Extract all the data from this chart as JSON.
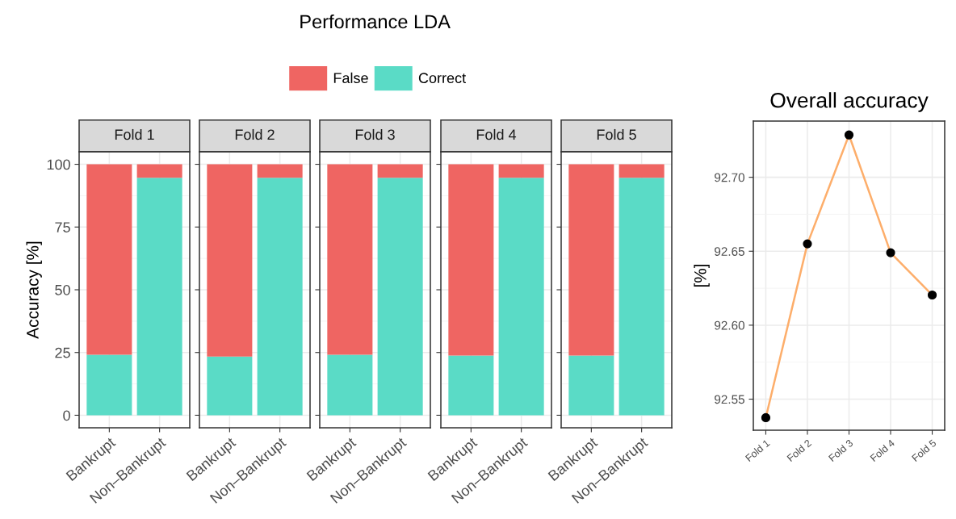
{
  "chart_data": [
    {
      "type": "bar",
      "title": "Fold 1",
      "annotations": [
        "Performance LDA"
      ],
      "ylabel": "Accuracy [%]",
      "categories": [
        "Bankrupt",
        "Non–Bankrupt"
      ],
      "stacked": true,
      "legend": "top",
      "grid": true,
      "ylim": [
        -5,
        105
      ],
      "yticks": [
        0,
        25,
        50,
        75,
        100
      ],
      "series": [
        {
          "name": "Correct",
          "color": "#5adbc6",
          "values": [
            24.1,
            94.6
          ]
        },
        {
          "name": "False",
          "color": "#ef6562",
          "values": [
            75.9,
            5.4
          ]
        }
      ]
    },
    {
      "type": "bar",
      "title": "Fold 2",
      "categories": [
        "Bankrupt",
        "Non–Bankrupt"
      ],
      "stacked": true,
      "grid": true,
      "ylim": [
        -5,
        105
      ],
      "yticks": [
        0,
        25,
        50,
        75,
        100
      ],
      "tick_labels": "x",
      "series": [
        {
          "color": "#5adbc6",
          "values": [
            23.4,
            94.6
          ]
        },
        {
          "color": "#ef6562",
          "values": [
            76.6,
            5.4
          ]
        }
      ]
    },
    {
      "type": "bar",
      "title": "Fold 3",
      "categories": [
        "Bankrupt",
        "Non–Bankrupt"
      ],
      "stacked": true,
      "grid": true,
      "ylim": [
        -5,
        105
      ],
      "yticks": [
        0,
        25,
        50,
        75,
        100
      ],
      "tick_labels": "x",
      "series": [
        {
          "color": "#5adbc6",
          "values": [
            24.1,
            94.6
          ]
        },
        {
          "color": "#ef6562",
          "values": [
            75.9,
            5.4
          ]
        }
      ]
    },
    {
      "type": "bar",
      "title": "Fold 4",
      "categories": [
        "Bankrupt",
        "Non–Bankrupt"
      ],
      "stacked": true,
      "grid": true,
      "ylim": [
        -5,
        105
      ],
      "yticks": [
        0,
        25,
        50,
        75,
        100
      ],
      "tick_labels": "x",
      "series": [
        {
          "color": "#5adbc6",
          "values": [
            23.8,
            94.6
          ]
        },
        {
          "color": "#ef6562",
          "values": [
            76.2,
            5.4
          ]
        }
      ]
    },
    {
      "type": "bar",
      "title": "Fold 5",
      "categories": [
        "Bankrupt",
        "Non–Bankrupt"
      ],
      "stacked": true,
      "grid": true,
      "ylim": [
        -5,
        105
      ],
      "yticks": [
        0,
        25,
        50,
        75,
        100
      ],
      "tick_labels": "x",
      "series": [
        {
          "color": "#5adbc6",
          "values": [
            23.8,
            94.6
          ]
        },
        {
          "color": "#ef6562",
          "values": [
            76.2,
            5.4
          ]
        }
      ]
    },
    {
      "type": "line",
      "title": "Overall accuracy",
      "ylabel": "[%]",
      "categories": [
        "Fold 1",
        "Fold 2",
        "Fold 3",
        "Fold 4",
        "Fold 5"
      ],
      "marker": "circle",
      "grid": true,
      "ylim": [
        92.529,
        92.738
      ],
      "yticks": [
        {
          "value": 92.55,
          "label": "92.55"
        },
        {
          "value": 92.6,
          "label": "92.60"
        },
        {
          "value": 92.65,
          "label": "92.65"
        },
        {
          "value": 92.7,
          "label": "92.70"
        }
      ],
      "series": [
        {
          "color": "#fdae6b",
          "values": [
            92.5375,
            92.655,
            92.7286,
            92.649,
            92.6204
          ]
        }
      ]
    }
  ]
}
